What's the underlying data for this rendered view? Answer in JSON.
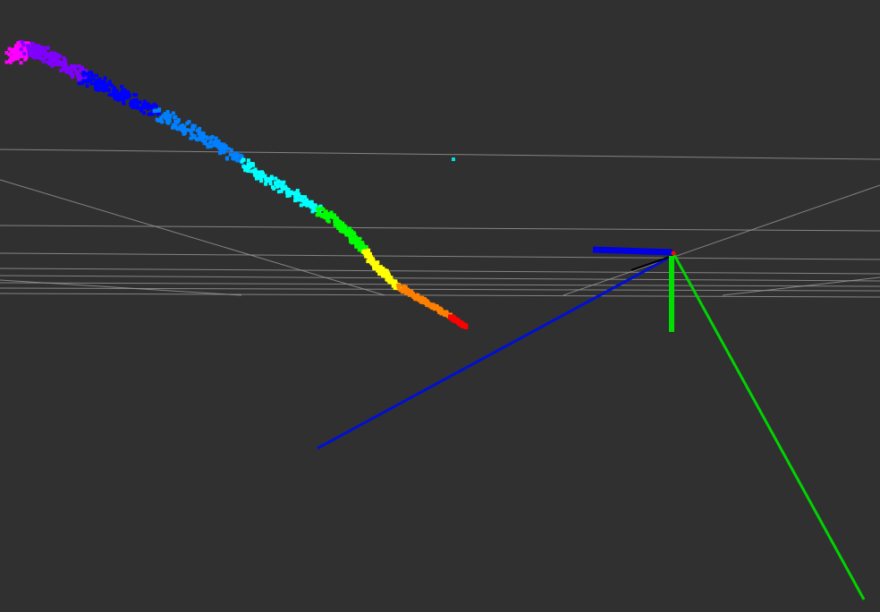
{
  "viewport": {
    "background_color": "#303030"
  },
  "grid": {
    "line_color": "#a0a0a0"
  },
  "point_cloud": {
    "color_scale": [
      "#ff0000",
      "#ff7f00",
      "#ffff00",
      "#00ff00",
      "#00ffff",
      "#0080ff",
      "#0000ff",
      "#8000ff",
      "#ff00ff"
    ]
  },
  "axes": {
    "x_color": "#ff0000",
    "y_color": "#00e000",
    "z_color": "#0000e0"
  },
  "paths": {
    "blue_color": "#0010d0",
    "green_color": "#00d400"
  }
}
